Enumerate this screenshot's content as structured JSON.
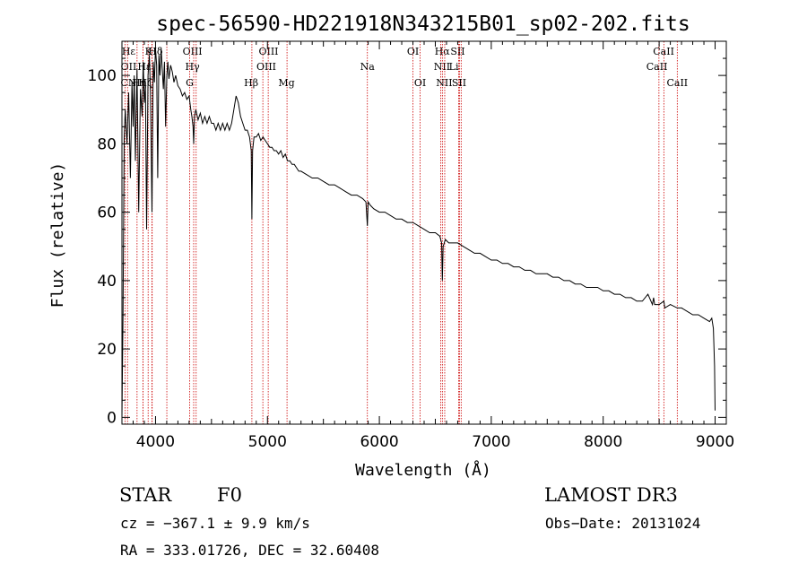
{
  "chart_data": {
    "type": "line",
    "title": "spec-56590-HD221918N343215B01_sp02-202.fits",
    "xlabel": "Wavelength (Å)",
    "ylabel": "Flux (relative)",
    "xlim": [
      3700,
      9100
    ],
    "ylim": [
      -2,
      110
    ],
    "xticks": [
      4000,
      5000,
      6000,
      7000,
      8000,
      9000
    ],
    "yticks": [
      0,
      20,
      40,
      60,
      80,
      100
    ],
    "line_color": "#000000",
    "marker_color": "#cc0000",
    "series": [
      {
        "name": "spectrum",
        "x": [
          3700,
          3710,
          3720,
          3730,
          3745,
          3760,
          3775,
          3790,
          3800,
          3810,
          3820,
          3835,
          3850,
          3865,
          3880,
          3890,
          3900,
          3910,
          3920,
          3933,
          3945,
          3955,
          3968,
          3980,
          3990,
          4000,
          4010,
          4020,
          4030,
          4040,
          4050,
          4060,
          4070,
          4080,
          4090,
          4101,
          4110,
          4120,
          4135,
          4150,
          4165,
          4180,
          4200,
          4220,
          4240,
          4260,
          4280,
          4300,
          4315,
          4325,
          4335,
          4341,
          4348,
          4360,
          4380,
          4400,
          4420,
          4440,
          4460,
          4480,
          4500,
          4520,
          4540,
          4560,
          4580,
          4600,
          4620,
          4640,
          4660,
          4680,
          4700,
          4720,
          4740,
          4760,
          4780,
          4800,
          4820,
          4840,
          4855,
          4861,
          4867,
          4880,
          4900,
          4920,
          4940,
          4960,
          4980,
          5000,
          5020,
          5040,
          5060,
          5080,
          5100,
          5120,
          5140,
          5160,
          5180,
          5200,
          5220,
          5240,
          5260,
          5280,
          5300,
          5350,
          5400,
          5450,
          5500,
          5550,
          5600,
          5650,
          5700,
          5750,
          5800,
          5850,
          5880,
          5893,
          5900,
          5920,
          5950,
          6000,
          6050,
          6100,
          6150,
          6200,
          6250,
          6300,
          6350,
          6400,
          6450,
          6500,
          6540,
          6556,
          6563,
          6570,
          6590,
          6620,
          6650,
          6700,
          6750,
          6800,
          6850,
          6900,
          6950,
          7000,
          7050,
          7100,
          7150,
          7200,
          7250,
          7300,
          7350,
          7400,
          7450,
          7500,
          7550,
          7600,
          7650,
          7700,
          7750,
          7800,
          7850,
          7900,
          7950,
          8000,
          8050,
          8100,
          8150,
          8200,
          8250,
          8300,
          8350,
          8400,
          8440,
          8450,
          8460,
          8500,
          8542,
          8550,
          8600,
          8662,
          8700,
          8750,
          8800,
          8850,
          8900,
          8950,
          8970,
          8985,
          8995,
          9000
        ],
        "y": [
          0,
          30,
          82,
          90,
          80,
          95,
          70,
          98,
          85,
          100,
          75,
          102,
          60,
          96,
          88,
          104,
          92,
          97,
          55,
          100,
          106,
          95,
          60,
          104,
          98,
          108,
          103,
          70,
          106,
          100,
          108,
          102,
          96,
          104,
          85,
          100,
          104,
          99,
          103,
          101,
          98,
          100,
          97,
          96,
          94,
          95,
          93,
          94,
          90,
          88,
          85,
          80,
          88,
          90,
          87,
          89,
          86,
          88,
          86,
          88,
          86,
          86,
          84,
          86,
          84,
          86,
          84,
          86,
          84,
          86,
          90,
          94,
          92,
          88,
          86,
          84,
          84,
          82,
          78,
          58,
          78,
          82,
          82,
          83,
          81,
          82,
          81,
          80,
          79,
          79,
          78,
          78,
          77,
          78,
          76,
          77,
          75,
          75,
          74,
          74,
          73,
          72,
          72,
          71,
          70,
          70,
          69,
          68,
          68,
          67,
          66,
          65,
          65,
          64,
          63,
          56,
          63,
          62,
          61,
          60,
          60,
          59,
          58,
          58,
          57,
          57,
          56,
          55,
          54,
          54,
          53,
          51,
          40,
          50,
          52,
          51,
          51,
          51,
          50,
          49,
          48,
          48,
          47,
          46,
          46,
          45,
          45,
          44,
          44,
          43,
          43,
          42,
          42,
          42,
          41,
          41,
          40,
          40,
          39,
          39,
          38,
          38,
          38,
          37,
          37,
          36,
          36,
          35,
          35,
          34,
          34,
          36,
          33,
          35,
          33,
          33,
          34,
          32,
          33,
          32,
          32,
          31,
          30,
          30,
          29,
          28,
          29,
          26,
          15,
          2
        ]
      }
    ],
    "line_markers": [
      {
        "label": "Hδ",
        "x": 4101,
        "row": 0,
        "label_x": 4000
      },
      {
        "label": "K",
        "x": 3934,
        "row": 0,
        "label_x": 3938
      },
      {
        "label": "H",
        "x": 3968,
        "row": 0,
        "label_x": 3972
      },
      {
        "label": "Hε",
        "x": 3970,
        "row": 0,
        "label_x": 3760
      },
      {
        "label": "OII",
        "x": 3727,
        "row": 1,
        "label_x": 3760
      },
      {
        "label": "Hε",
        "x": 3889,
        "row": 1,
        "label_x": 3900
      },
      {
        "label": "CN",
        "x": 3750,
        "row": 2,
        "label_x": 3760
      },
      {
        "label": "Hη",
        "x": 3835,
        "row": 2,
        "label_x": 3855
      },
      {
        "label": "Hζ",
        "x": 3889,
        "row": 2,
        "label_x": 3910
      },
      {
        "label": "OIII",
        "x": 4363,
        "row": 0,
        "label_x": 4330
      },
      {
        "label": "Hγ",
        "x": 4341,
        "row": 1,
        "label_x": 4330
      },
      {
        "label": "G",
        "x": 4305,
        "row": 2,
        "label_x": 4305
      },
      {
        "label": "Hβ",
        "x": 4861,
        "row": 2,
        "label_x": 4855
      },
      {
        "label": "OIII",
        "x": 4959,
        "row": 0,
        "label_x": 5010
      },
      {
        "label": "OIII",
        "x": 5007,
        "row": 1,
        "label_x": 4990
      },
      {
        "label": "Mg",
        "x": 5175,
        "row": 2,
        "label_x": 5170
      },
      {
        "label": "Na",
        "x": 5893,
        "row": 1,
        "label_x": 5893
      },
      {
        "label": "OI",
        "x": 6300,
        "row": 0,
        "label_x": 6300
      },
      {
        "label": "OI",
        "x": 6364,
        "row": 2,
        "label_x": 6364
      },
      {
        "label": "Hα",
        "x": 6563,
        "row": 0,
        "label_x": 6562
      },
      {
        "label": "SII",
        "x": 6717,
        "row": 0,
        "label_x": 6700
      },
      {
        "label": "NII",
        "x": 6548,
        "row": 1,
        "label_x": 6560
      },
      {
        "label": "Li",
        "x": 6708,
        "row": 1,
        "label_x": 6665
      },
      {
        "label": "NII",
        "x": 6584,
        "row": 2,
        "label_x": 6580
      },
      {
        "label": "SII",
        "x": 6731,
        "row": 2,
        "label_x": 6712
      },
      {
        "label": "CaII",
        "x": 8498,
        "row": 0,
        "label_x": 8540
      },
      {
        "label": "CaII",
        "x": 8542,
        "row": 1,
        "label_x": 8480
      },
      {
        "label": "CaII",
        "x": 8662,
        "row": 2,
        "label_x": 8662
      }
    ]
  },
  "info": {
    "class": "STAR",
    "subclass": "F0",
    "survey": "LAMOST DR3",
    "cz": "cz = −367.1 ± 9.9 km/s",
    "obs_date": "Obs−Date: 20131024",
    "radec": "RA = 333.01726, DEC =  32.60408"
  }
}
